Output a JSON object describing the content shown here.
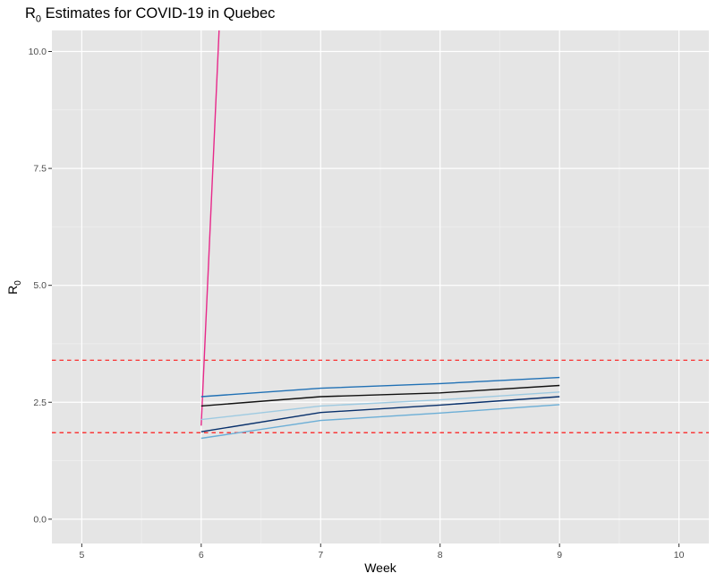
{
  "chart_data": {
    "type": "line",
    "title_main": "R",
    "title_sub": "0",
    "title_rest": " Estimates for COVID-19 in Quebec",
    "xlabel": "Week",
    "ylabel_main": "R",
    "ylabel_sub": "0",
    "xlim": [
      4.75,
      10.25
    ],
    "ylim": [
      -0.52,
      10.45
    ],
    "x_ticks": [
      5,
      6,
      7,
      8,
      9,
      10
    ],
    "x_tick_labels": [
      "5",
      "6",
      "7",
      "8",
      "9",
      "10"
    ],
    "y_ticks": [
      0,
      2.5,
      5,
      7.5,
      10
    ],
    "y_tick_labels": [
      "0.0",
      "2.5",
      "5.0",
      "7.5",
      "10.0"
    ],
    "grid": true,
    "reference_lines": [
      {
        "y": 3.4,
        "color": "#ff0000",
        "style": "dashed"
      },
      {
        "y": 1.85,
        "color": "#ff0000",
        "style": "dashed"
      }
    ],
    "series": [
      {
        "color": "#e7298a",
        "x": [
          6,
          6.15
        ],
        "y": [
          2.0,
          10.45
        ]
      },
      {
        "color": "#2171b5",
        "x": [
          6,
          7,
          8,
          9
        ],
        "y": [
          2.62,
          2.8,
          2.9,
          3.03
        ]
      },
      {
        "color": "#111111",
        "x": [
          6,
          7,
          8,
          9
        ],
        "y": [
          2.42,
          2.62,
          2.7,
          2.86
        ]
      },
      {
        "color": "#9ecae1",
        "x": [
          6,
          7,
          8,
          9
        ],
        "y": [
          2.13,
          2.42,
          2.55,
          2.72
        ]
      },
      {
        "color": "#08306b",
        "x": [
          6,
          7,
          8,
          9
        ],
        "y": [
          1.87,
          2.28,
          2.44,
          2.62
        ]
      },
      {
        "color": "#6baed6",
        "x": [
          6,
          7,
          8,
          9
        ],
        "y": [
          1.73,
          2.11,
          2.27,
          2.45
        ]
      }
    ]
  }
}
